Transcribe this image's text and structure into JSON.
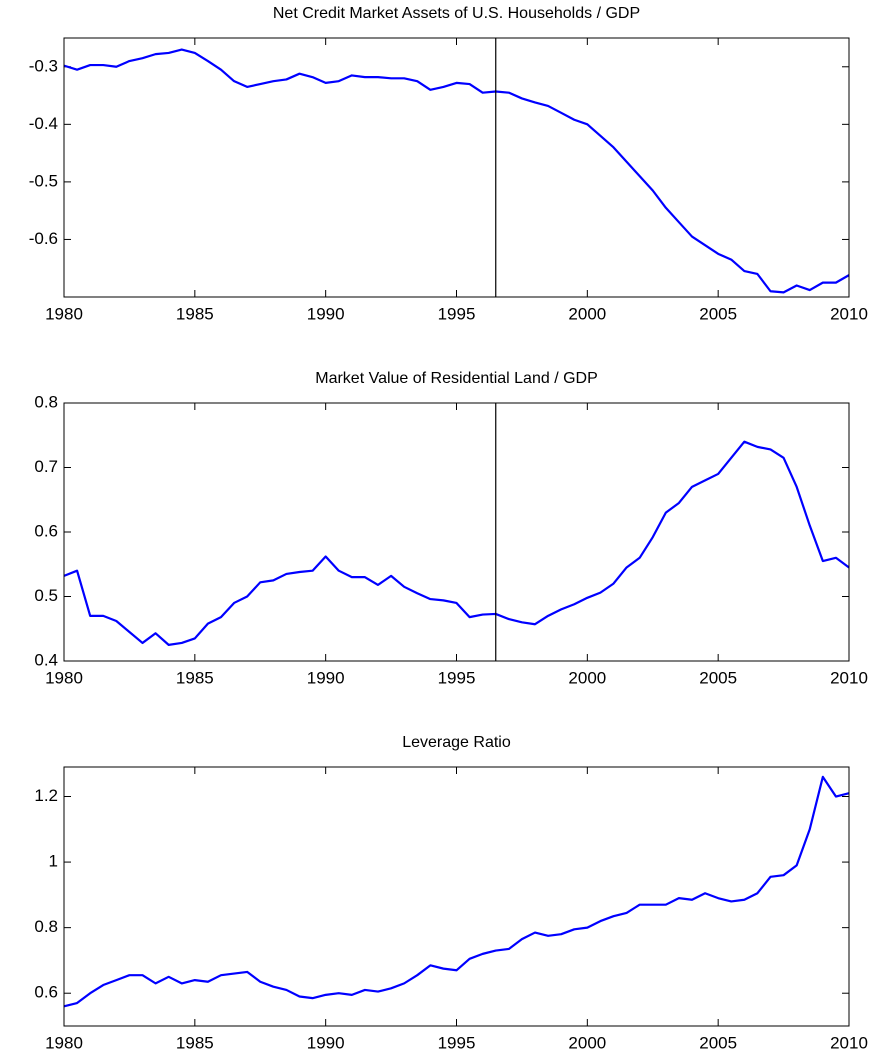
{
  "chart_data": [
    {
      "type": "line",
      "title": "Net Credit Market Assets of U.S. Households / GDP",
      "x": [
        1980,
        1980.5,
        1981,
        1981.5,
        1982,
        1982.5,
        1983,
        1983.5,
        1984,
        1984.5,
        1985,
        1985.5,
        1986,
        1986.5,
        1987,
        1987.5,
        1988,
        1988.5,
        1989,
        1989.5,
        1990,
        1990.5,
        1991,
        1991.5,
        1992,
        1992.5,
        1993,
        1993.5,
        1994,
        1994.5,
        1995,
        1995.5,
        1996,
        1996.5,
        1997,
        1997.5,
        1998,
        1998.5,
        1999,
        1999.5,
        2000,
        2000.5,
        2001,
        2001.5,
        2002,
        2002.5,
        2003,
        2003.5,
        2004,
        2004.5,
        2005,
        2005.5,
        2006,
        2006.5,
        2007,
        2007.5,
        2008,
        2008.5,
        2009,
        2009.5,
        2010
      ],
      "series": [
        {
          "color": "#0000ff",
          "values": [
            -0.298,
            -0.305,
            -0.297,
            -0.297,
            -0.3,
            -0.29,
            -0.285,
            -0.278,
            -0.276,
            -0.27,
            -0.276,
            -0.29,
            -0.305,
            -0.325,
            -0.335,
            -0.33,
            -0.325,
            -0.322,
            -0.312,
            -0.318,
            -0.328,
            -0.325,
            -0.315,
            -0.318,
            -0.318,
            -0.32,
            -0.32,
            -0.325,
            -0.34,
            -0.335,
            -0.328,
            -0.33,
            -0.345,
            -0.343,
            -0.345,
            -0.355,
            -0.362,
            -0.368,
            -0.38,
            -0.392,
            -0.4,
            -0.42,
            -0.44,
            -0.465,
            -0.49,
            -0.515,
            -0.545,
            -0.57,
            -0.595,
            -0.61,
            -0.625,
            -0.635,
            -0.655,
            -0.66,
            -0.69,
            -0.692,
            -0.68,
            -0.688,
            -0.675,
            -0.675,
            -0.662
          ]
        }
      ],
      "xlim": [
        1980,
        2010
      ],
      "xticks": [
        1980,
        1985,
        1990,
        1995,
        2000,
        2005,
        2010
      ],
      "ylim": [
        -0.7,
        -0.25
      ],
      "yticks": [
        -0.6,
        -0.5,
        -0.4,
        -0.3
      ],
      "vline": 1996.5
    },
    {
      "type": "line",
      "title": "Market Value of Residential Land / GDP",
      "x": [
        1980,
        1980.5,
        1981,
        1981.5,
        1982,
        1982.5,
        1983,
        1983.5,
        1984,
        1984.5,
        1985,
        1985.5,
        1986,
        1986.5,
        1987,
        1987.5,
        1988,
        1988.5,
        1989,
        1989.5,
        1990,
        1990.5,
        1991,
        1991.5,
        1992,
        1992.5,
        1993,
        1993.5,
        1994,
        1994.5,
        1995,
        1995.5,
        1996,
        1996.5,
        1997,
        1997.5,
        1998,
        1998.5,
        1999,
        1999.5,
        2000,
        2000.5,
        2001,
        2001.5,
        2002,
        2002.5,
        2003,
        2003.5,
        2004,
        2004.5,
        2005,
        2005.5,
        2006,
        2006.5,
        2007,
        2007.5,
        2008,
        2008.5,
        2009,
        2009.5,
        2010
      ],
      "series": [
        {
          "color": "#0000ff",
          "values": [
            0.532,
            0.54,
            0.47,
            0.47,
            0.462,
            0.445,
            0.428,
            0.443,
            0.425,
            0.428,
            0.435,
            0.458,
            0.468,
            0.49,
            0.5,
            0.522,
            0.525,
            0.535,
            0.538,
            0.54,
            0.562,
            0.54,
            0.53,
            0.53,
            0.518,
            0.532,
            0.515,
            0.505,
            0.496,
            0.494,
            0.49,
            0.468,
            0.472,
            0.473,
            0.465,
            0.46,
            0.457,
            0.47,
            0.48,
            0.488,
            0.498,
            0.506,
            0.52,
            0.545,
            0.56,
            0.592,
            0.63,
            0.645,
            0.67,
            0.68,
            0.69,
            0.715,
            0.74,
            0.732,
            0.728,
            0.715,
            0.67,
            0.61,
            0.555,
            0.56,
            0.545
          ]
        }
      ],
      "xlim": [
        1980,
        2010
      ],
      "xticks": [
        1980,
        1985,
        1990,
        1995,
        2000,
        2005,
        2010
      ],
      "ylim": [
        0.4,
        0.8
      ],
      "yticks": [
        0.4,
        0.5,
        0.6,
        0.7,
        0.8
      ],
      "vline": 1996.5
    },
    {
      "type": "line",
      "title": "Leverage Ratio",
      "x": [
        1980,
        1980.5,
        1981,
        1981.5,
        1982,
        1982.5,
        1983,
        1983.5,
        1984,
        1984.5,
        1985,
        1985.5,
        1986,
        1986.5,
        1987,
        1987.5,
        1988,
        1988.5,
        1989,
        1989.5,
        1990,
        1990.5,
        1991,
        1991.5,
        1992,
        1992.5,
        1993,
        1993.5,
        1994,
        1994.5,
        1995,
        1995.5,
        1996,
        1996.5,
        1997,
        1997.5,
        1998,
        1998.5,
        1999,
        1999.5,
        2000,
        2000.5,
        2001,
        2001.5,
        2002,
        2002.5,
        2003,
        2003.5,
        2004,
        2004.5,
        2005,
        2005.5,
        2006,
        2006.5,
        2007,
        2007.5,
        2008,
        2008.5,
        2009,
        2009.5,
        2010
      ],
      "series": [
        {
          "color": "#0000ff",
          "values": [
            0.56,
            0.57,
            0.6,
            0.625,
            0.64,
            0.655,
            0.655,
            0.63,
            0.65,
            0.63,
            0.64,
            0.635,
            0.655,
            0.66,
            0.665,
            0.635,
            0.62,
            0.61,
            0.59,
            0.585,
            0.595,
            0.6,
            0.595,
            0.61,
            0.605,
            0.615,
            0.63,
            0.655,
            0.685,
            0.675,
            0.67,
            0.705,
            0.72,
            0.73,
            0.735,
            0.765,
            0.785,
            0.775,
            0.78,
            0.795,
            0.8,
            0.82,
            0.835,
            0.845,
            0.87,
            0.87,
            0.87,
            0.89,
            0.885,
            0.905,
            0.89,
            0.88,
            0.885,
            0.905,
            0.955,
            0.96,
            0.99,
            1.1,
            1.26,
            1.2,
            1.21
          ]
        }
      ],
      "xlim": [
        1980,
        2010
      ],
      "xticks": [
        1980,
        1985,
        1990,
        1995,
        2000,
        2005,
        2010
      ],
      "ylim": [
        0.5,
        1.29
      ],
      "yticks": [
        0.6,
        0.8,
        1,
        1.2
      ]
    }
  ]
}
